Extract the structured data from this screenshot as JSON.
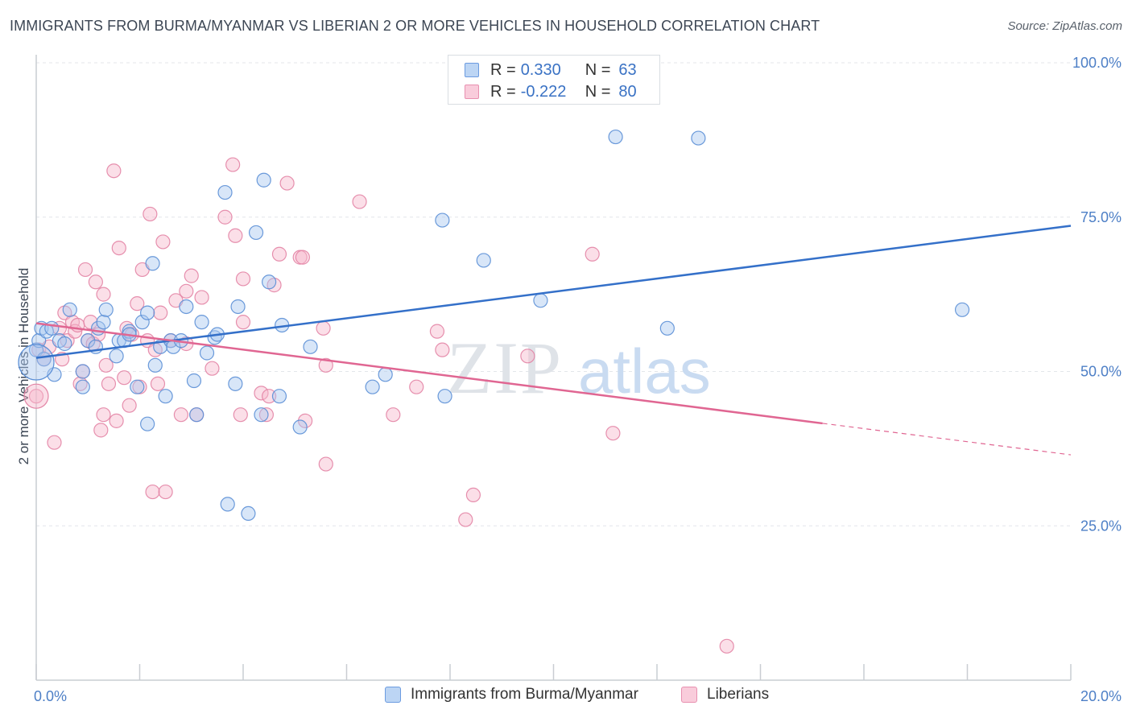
{
  "header": {
    "title": "IMMIGRANTS FROM BURMA/MYANMAR VS LIBERIAN 2 OR MORE VEHICLES IN HOUSEHOLD CORRELATION CHART",
    "source": "Source: ZipAtlas.com"
  },
  "legend": {
    "rows": [
      {
        "r_label": "R =",
        "r_value": "0.330",
        "n_label": "N =",
        "n_value": "63"
      },
      {
        "r_label": "R =",
        "r_value": "-0.222",
        "n_label": "N =",
        "n_value": "80"
      }
    ]
  },
  "colors": {
    "blue_fill": "#a9c8ef",
    "blue_stroke": "#5b8fd6",
    "blue_line": "#3470c9",
    "pink_fill": "#f6b9cc",
    "pink_stroke": "#e384a5",
    "pink_line": "#e06692",
    "grid": "#e3e6ea",
    "tick_label": "#4d7fc6"
  },
  "watermark": {
    "zip": "ZIP",
    "atlas": "atlas"
  },
  "chart_data": {
    "type": "scatter",
    "title": "IMMIGRANTS FROM BURMA/MYANMAR VS LIBERIAN 2 OR MORE VEHICLES IN HOUSEHOLD CORRELATION CHART",
    "xlabel": "",
    "ylabel": "2 or more Vehicles in Household",
    "xlim": [
      0,
      20
    ],
    "ylim": [
      0,
      100
    ],
    "x_tick_labels": [
      "0.0%",
      "20.0%"
    ],
    "y_ticks": [
      25,
      50,
      75,
      100
    ],
    "y_tick_labels": [
      "25.0%",
      "50.0%",
      "75.0%",
      "100.0%"
    ],
    "grid": true,
    "legend_position": "top-center",
    "series": [
      {
        "name": "Immigrants from Burma/Myanmar",
        "r": 0.33,
        "n": 63,
        "trend": {
          "x": [
            0,
            20
          ],
          "y": [
            52.2,
            73.6
          ]
        },
        "points": [
          [
            0.0,
            53.5
          ],
          [
            0.05,
            55.0
          ],
          [
            0.1,
            57.0
          ],
          [
            0.15,
            52.0
          ],
          [
            0.2,
            56.5
          ],
          [
            0.3,
            57.0
          ],
          [
            0.35,
            49.5
          ],
          [
            0.45,
            55.0
          ],
          [
            0.55,
            54.5
          ],
          [
            0.65,
            60.0
          ],
          [
            0.9,
            50.0
          ],
          [
            0.9,
            47.5
          ],
          [
            1.0,
            55.0
          ],
          [
            1.15,
            54.0
          ],
          [
            1.2,
            57.0
          ],
          [
            1.3,
            58.0
          ],
          [
            1.35,
            60.0
          ],
          [
            1.55,
            52.5
          ],
          [
            1.6,
            55.0
          ],
          [
            1.7,
            55.0
          ],
          [
            1.8,
            56.5
          ],
          [
            1.8,
            56.0
          ],
          [
            1.95,
            47.5
          ],
          [
            2.05,
            58.0
          ],
          [
            2.15,
            59.5
          ],
          [
            2.15,
            41.5
          ],
          [
            2.25,
            67.5
          ],
          [
            2.3,
            51.0
          ],
          [
            2.4,
            54.0
          ],
          [
            2.5,
            46.0
          ],
          [
            2.6,
            55.0
          ],
          [
            2.65,
            54.0
          ],
          [
            2.8,
            55.0
          ],
          [
            2.9,
            60.5
          ],
          [
            3.05,
            48.5
          ],
          [
            3.1,
            43.0
          ],
          [
            3.2,
            58.0
          ],
          [
            3.3,
            53.0
          ],
          [
            3.45,
            55.5
          ],
          [
            3.5,
            56.0
          ],
          [
            3.65,
            79.0
          ],
          [
            3.7,
            28.5
          ],
          [
            3.85,
            48.0
          ],
          [
            3.9,
            60.5
          ],
          [
            4.1,
            27.0
          ],
          [
            4.25,
            72.5
          ],
          [
            4.35,
            43.0
          ],
          [
            4.4,
            81.0
          ],
          [
            4.5,
            64.5
          ],
          [
            4.7,
            46.0
          ],
          [
            4.75,
            57.5
          ],
          [
            5.1,
            41.0
          ],
          [
            5.3,
            54.0
          ],
          [
            6.5,
            47.5
          ],
          [
            6.75,
            49.5
          ],
          [
            7.85,
            74.5
          ],
          [
            7.9,
            46.0
          ],
          [
            8.65,
            68.0
          ],
          [
            9.75,
            61.5
          ],
          [
            11.2,
            88.0
          ],
          [
            12.2,
            57.0
          ],
          [
            12.8,
            87.8
          ],
          [
            17.9,
            60.0
          ]
        ]
      },
      {
        "name": "Liberians",
        "r": -0.222,
        "n": 80,
        "trend": {
          "x": [
            0,
            15.2
          ],
          "y": [
            57.8,
            41.6
          ]
        },
        "trend_extension": {
          "x": [
            15.2,
            20
          ],
          "y": [
            41.6,
            36.5
          ]
        },
        "points": [
          [
            0.0,
            46.0
          ],
          [
            0.05,
            53.5
          ],
          [
            0.15,
            52.0
          ],
          [
            0.25,
            54.0
          ],
          [
            0.35,
            38.5
          ],
          [
            0.45,
            57.0
          ],
          [
            0.5,
            52.0
          ],
          [
            0.55,
            59.5
          ],
          [
            0.6,
            55.0
          ],
          [
            0.7,
            58.0
          ],
          [
            0.75,
            56.5
          ],
          [
            0.8,
            57.5
          ],
          [
            0.85,
            48.0
          ],
          [
            0.9,
            50.0
          ],
          [
            0.95,
            66.5
          ],
          [
            1.0,
            55.0
          ],
          [
            1.05,
            58.0
          ],
          [
            1.1,
            54.5
          ],
          [
            1.15,
            64.5
          ],
          [
            1.2,
            56.0
          ],
          [
            1.25,
            40.5
          ],
          [
            1.3,
            62.5
          ],
          [
            1.3,
            43.0
          ],
          [
            1.35,
            51.0
          ],
          [
            1.4,
            48.0
          ],
          [
            1.5,
            82.5
          ],
          [
            1.55,
            42.0
          ],
          [
            1.6,
            70.0
          ],
          [
            1.7,
            49.0
          ],
          [
            1.75,
            57.0
          ],
          [
            1.8,
            44.5
          ],
          [
            1.85,
            56.0
          ],
          [
            1.95,
            61.0
          ],
          [
            2.0,
            47.5
          ],
          [
            2.05,
            66.5
          ],
          [
            2.15,
            55.0
          ],
          [
            2.2,
            75.5
          ],
          [
            2.25,
            30.5
          ],
          [
            2.3,
            53.5
          ],
          [
            2.35,
            48.0
          ],
          [
            2.4,
            59.5
          ],
          [
            2.45,
            71.0
          ],
          [
            2.5,
            30.5
          ],
          [
            2.6,
            55.0
          ],
          [
            2.7,
            61.5
          ],
          [
            2.8,
            43.0
          ],
          [
            2.9,
            54.5
          ],
          [
            2.9,
            63.0
          ],
          [
            3.0,
            65.5
          ],
          [
            3.1,
            43.0
          ],
          [
            3.2,
            62.0
          ],
          [
            3.4,
            50.5
          ],
          [
            3.65,
            75.0
          ],
          [
            3.8,
            83.5
          ],
          [
            3.85,
            72.0
          ],
          [
            3.95,
            43.0
          ],
          [
            4.0,
            65.0
          ],
          [
            4.0,
            58.0
          ],
          [
            4.35,
            46.5
          ],
          [
            4.45,
            43.0
          ],
          [
            4.5,
            46.0
          ],
          [
            4.6,
            64.0
          ],
          [
            4.7,
            69.0
          ],
          [
            4.85,
            80.5
          ],
          [
            5.1,
            68.5
          ],
          [
            5.15,
            68.5
          ],
          [
            5.2,
            42.0
          ],
          [
            5.55,
            57.0
          ],
          [
            5.6,
            35.0
          ],
          [
            5.6,
            51.0
          ],
          [
            6.25,
            77.5
          ],
          [
            6.9,
            43.0
          ],
          [
            7.35,
            47.5
          ],
          [
            7.75,
            56.5
          ],
          [
            7.85,
            53.5
          ],
          [
            8.3,
            26.0
          ],
          [
            8.45,
            30.0
          ],
          [
            9.5,
            52.5
          ],
          [
            10.75,
            69.0
          ],
          [
            11.15,
            40.0
          ],
          [
            13.35,
            5.5
          ]
        ]
      }
    ]
  },
  "bottom_legend": {
    "items": [
      {
        "label": "Immigrants from Burma/Myanmar"
      },
      {
        "label": "Liberians"
      }
    ]
  }
}
